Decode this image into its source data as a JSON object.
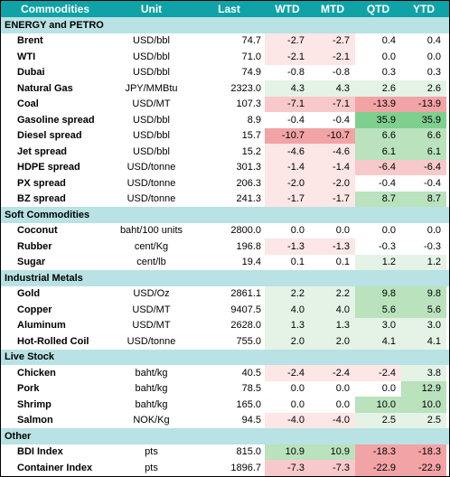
{
  "header": {
    "commodities": "Commodities",
    "unit": "Unit",
    "last": "Last",
    "wtd": "WTD",
    "mtd": "MTD",
    "qtd": "QTD",
    "ytd": "YTD"
  },
  "colors": {
    "header_bg": "#0fa2a6",
    "section_bg": "#b8e2e4",
    "neg_strong": "#f2a3a6",
    "neg_mid": "#f8c9ca",
    "neg_light": "#fce6e6",
    "pos_strong": "#7fcf8f",
    "pos_mid": "#b9e2bd",
    "pos_light": "#e4f3e5"
  },
  "sections": [
    {
      "title": "ENERGY and PETRO",
      "rows": [
        {
          "name": "Brent",
          "unit": "USD/bbl",
          "last": "74.7",
          "wtd": "-2.7",
          "mtd": "-2.7",
          "qtd": "0.4",
          "ytd": "0.4"
        },
        {
          "name": "WTI",
          "unit": "USD/bbl",
          "last": "71.0",
          "wtd": "-2.1",
          "mtd": "-2.1",
          "qtd": "0.0",
          "ytd": "0.0"
        },
        {
          "name": "Dubai",
          "unit": "USD/bbl",
          "last": "74.9",
          "wtd": "-0.8",
          "mtd": "-0.8",
          "qtd": "0.3",
          "ytd": "0.3"
        },
        {
          "name": "Natural Gas",
          "unit": "JPY/MMBtu",
          "last": "2323.0",
          "wtd": "4.3",
          "mtd": "4.3",
          "qtd": "2.6",
          "ytd": "2.6"
        },
        {
          "name": "Coal",
          "unit": "USD/MT",
          "last": "107.3",
          "wtd": "-7.1",
          "mtd": "-7.1",
          "qtd": "-13.9",
          "ytd": "-13.9"
        },
        {
          "name": "Gasoline spread",
          "unit": "USD/bbl",
          "last": "8.9",
          "wtd": "-0.4",
          "mtd": "-0.4",
          "qtd": "35.9",
          "ytd": "35.9"
        },
        {
          "name": "Diesel spread",
          "unit": "USD/bbl",
          "last": "15.7",
          "wtd": "-10.7",
          "mtd": "-10.7",
          "qtd": "6.6",
          "ytd": "6.6"
        },
        {
          "name": "Jet spread",
          "unit": "USD/bbl",
          "last": "15.2",
          "wtd": "-4.6",
          "mtd": "-4.6",
          "qtd": "6.1",
          "ytd": "6.1"
        },
        {
          "name": "HDPE spread",
          "unit": "USD/tonne",
          "last": "301.3",
          "wtd": "-1.4",
          "mtd": "-1.4",
          "qtd": "-6.4",
          "ytd": "-6.4"
        },
        {
          "name": "PX spread",
          "unit": "USD/tonne",
          "last": "206.3",
          "wtd": "-2.0",
          "mtd": "-2.0",
          "qtd": "-0.4",
          "ytd": "-0.4"
        },
        {
          "name": "BZ spread",
          "unit": "USD/tonne",
          "last": "241.3",
          "wtd": "-1.7",
          "mtd": "-1.7",
          "qtd": "8.7",
          "ytd": "8.7"
        }
      ]
    },
    {
      "title": "Soft Commodities",
      "rows": [
        {
          "name": "Coconut",
          "unit": "baht/100 units",
          "last": "2800.0",
          "wtd": "0.0",
          "mtd": "0.0",
          "qtd": "0.0",
          "ytd": "0.0"
        },
        {
          "name": "Rubber",
          "unit": "cent/Kg",
          "last": "196.8",
          "wtd": "-1.3",
          "mtd": "-1.3",
          "qtd": "-0.3",
          "ytd": "-0.3"
        },
        {
          "name": "Sugar",
          "unit": "cent/lb",
          "last": "19.4",
          "wtd": "0.1",
          "mtd": "0.1",
          "qtd": "1.2",
          "ytd": "1.2"
        }
      ]
    },
    {
      "title": "Industrial Metals",
      "rows": [
        {
          "name": "Gold",
          "unit": "USD/Oz",
          "last": "2861.1",
          "wtd": "2.2",
          "mtd": "2.2",
          "qtd": "9.8",
          "ytd": "9.8"
        },
        {
          "name": "Copper",
          "unit": "USD/MT",
          "last": "9407.5",
          "wtd": "4.0",
          "mtd": "4.0",
          "qtd": "5.6",
          "ytd": "5.6"
        },
        {
          "name": "Aluminum",
          "unit": "USD/MT",
          "last": "2628.0",
          "wtd": "1.3",
          "mtd": "1.3",
          "qtd": "3.0",
          "ytd": "3.0"
        },
        {
          "name": "Hot-Rolled Coil",
          "unit": "USD/tonne",
          "last": "755.0",
          "wtd": "2.0",
          "mtd": "2.0",
          "qtd": "4.1",
          "ytd": "4.1"
        }
      ]
    },
    {
      "title": "Live Stock",
      "rows": [
        {
          "name": "Chicken",
          "unit": "baht/kg",
          "last": "40.5",
          "wtd": "-2.4",
          "mtd": "-2.4",
          "qtd": "-2.4",
          "ytd": "3.8"
        },
        {
          "name": "Pork",
          "unit": "baht/kg",
          "last": "78.5",
          "wtd": "0.0",
          "mtd": "0.0",
          "qtd": "0.0",
          "ytd": "12.9"
        },
        {
          "name": "Shrimp",
          "unit": "baht/kg",
          "last": "165.0",
          "wtd": "0.0",
          "mtd": "0.0",
          "qtd": "10.0",
          "ytd": "10.0"
        },
        {
          "name": "Salmon",
          "unit": "NOK/Kg",
          "last": "94.5",
          "wtd": "-4.0",
          "mtd": "-4.0",
          "qtd": "2.5",
          "ytd": "2.5"
        }
      ]
    },
    {
      "title": "Other",
      "rows": [
        {
          "name": "BDI Index",
          "unit": "pts",
          "last": "815.0",
          "wtd": "10.9",
          "mtd": "10.9",
          "qtd": "-18.3",
          "ytd": "-18.3"
        },
        {
          "name": "Container Index",
          "unit": "pts",
          "last": "1896.7",
          "wtd": "-7.3",
          "mtd": "-7.3",
          "qtd": "-22.9",
          "ytd": "-22.9"
        }
      ]
    }
  ]
}
